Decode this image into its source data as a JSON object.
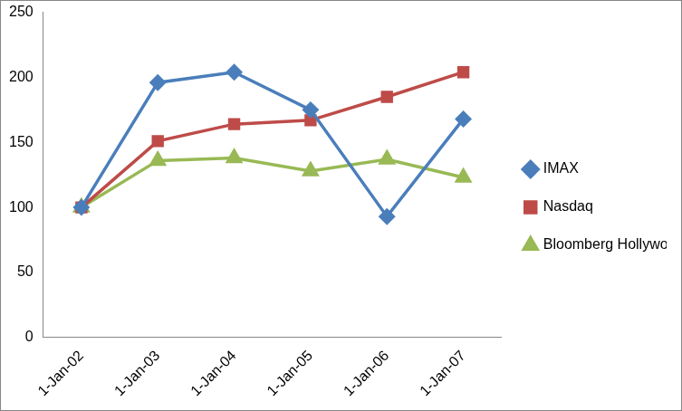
{
  "chart_data": {
    "type": "line",
    "categories": [
      "1-Jan-02",
      "1-Jan-03",
      "1-Jan-04",
      "1-Jan-05",
      "1-Jan-06",
      "1-Jan-07"
    ],
    "series": [
      {
        "name": "IMAX",
        "color": "#4a7ebb",
        "marker": "diamond",
        "line_style": "solid",
        "values": [
          100,
          196,
          204,
          175,
          93,
          168
        ]
      },
      {
        "name": "Nasdaq",
        "color": "#be4b48",
        "marker": "square",
        "line_style": "solid",
        "values": [
          100,
          151,
          164,
          167,
          185,
          204
        ]
      },
      {
        "name": "Bloomberg Hollywood Reporter",
        "color": "#98b954",
        "marker": "triangle",
        "line_style": "solid",
        "values": [
          100,
          136,
          138,
          128,
          137,
          123
        ]
      }
    ],
    "ylim": [
      0,
      250
    ],
    "yticks": [
      0,
      50,
      100,
      150,
      200,
      250
    ],
    "grid": false,
    "legend": "right"
  }
}
